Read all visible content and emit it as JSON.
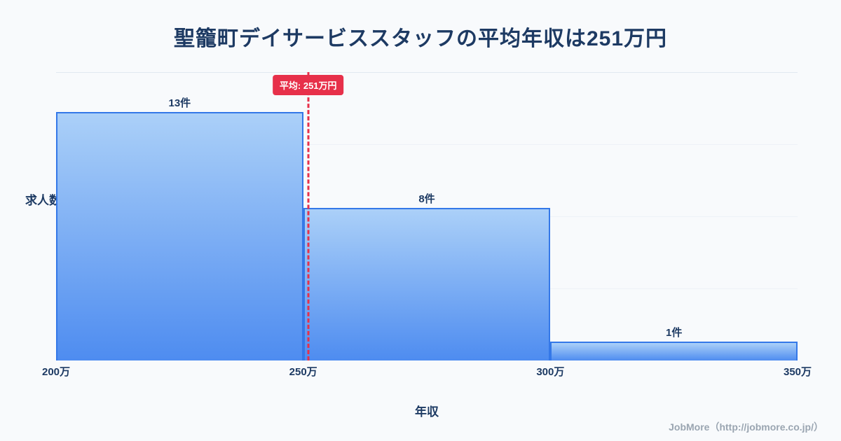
{
  "page": {
    "title": "聖籠町デイサービススタッフの平均年収は251万円",
    "footer": "JobMore（http://jobmore.co.jp/）"
  },
  "chart_data": {
    "type": "bar",
    "title": "聖籠町デイサービススタッフの平均年収は251万円",
    "xlabel": "年収",
    "ylabel": "求人数",
    "categories": [
      "200万-250万",
      "250万-300万",
      "300万-350万"
    ],
    "values": [
      13,
      8,
      1
    ],
    "bar_labels": [
      "13件",
      "8件",
      "1件"
    ],
    "x_ticks": [
      "200万",
      "250万",
      "300万",
      "350万"
    ],
    "x_tick_values": [
      200,
      250,
      300,
      350
    ],
    "x_range": [
      200,
      350
    ],
    "ylim": [
      0,
      15.1
    ],
    "grid": true,
    "legend": false,
    "average": {
      "value": 251,
      "label": "平均: 251万円"
    },
    "colors": {
      "bar_top": "#abd0f8",
      "bar_bottom": "#4e8cf0",
      "bar_border": "#3478e8",
      "average_line": "#e7304a",
      "title_text": "#1d3a63",
      "footer_text": "#9aa5b1",
      "background": "#f8fafc"
    }
  }
}
